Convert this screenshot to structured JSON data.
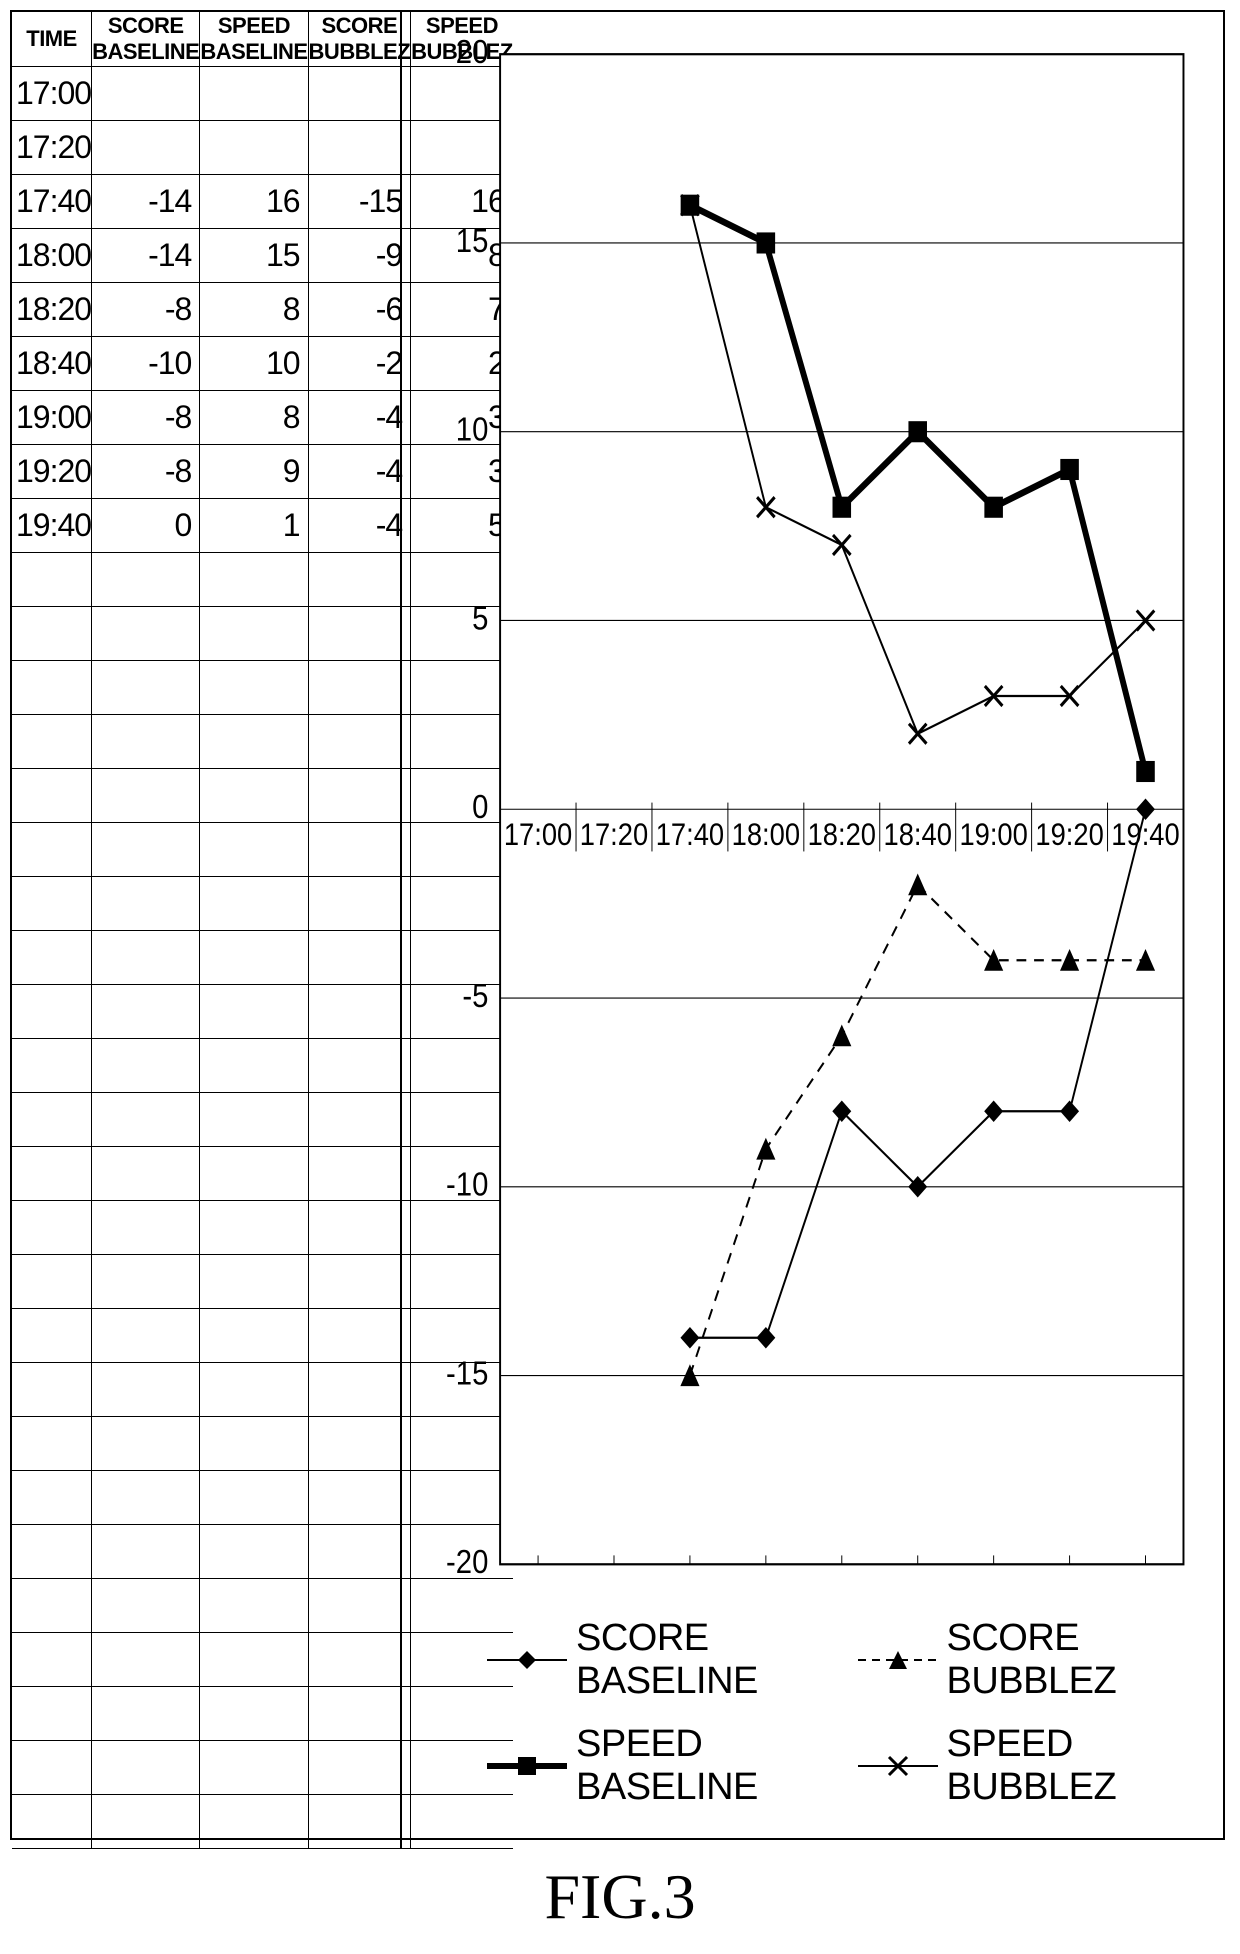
{
  "figure_label": "FIG.3",
  "table": {
    "columns": [
      "TIME",
      "SCORE BASELINE",
      "SPEED BASELINE",
      "SCORE BUBBLEZ",
      "SPEED BUBBLEZ"
    ],
    "col_widths_pct": [
      14,
      21.5,
      21.5,
      21.5,
      21.5
    ],
    "times": [
      "17:00",
      "17:20",
      "17:40",
      "18:00",
      "18:20",
      "18:40",
      "19:00",
      "19:20",
      "19:40"
    ],
    "rows": [
      {
        "time": "17:00",
        "sb": null,
        "spb": null,
        "scb": null,
        "spbb": null
      },
      {
        "time": "17:20",
        "sb": null,
        "spb": null,
        "scb": null,
        "spbb": null
      },
      {
        "time": "17:40",
        "sb": -14,
        "spb": 16,
        "scb": -15,
        "spbb": 16
      },
      {
        "time": "18:00",
        "sb": -14,
        "spb": 15,
        "scb": -9,
        "spbb": 8
      },
      {
        "time": "18:20",
        "sb": -8,
        "spb": 8,
        "scb": -6,
        "spbb": 7
      },
      {
        "time": "18:40",
        "sb": -10,
        "spb": 10,
        "scb": -2,
        "spbb": 2
      },
      {
        "time": "19:00",
        "sb": -8,
        "spb": 8,
        "scb": -4,
        "spbb": 3
      },
      {
        "time": "19:20",
        "sb": -8,
        "spb": 9,
        "scb": -4,
        "spbb": 3
      },
      {
        "time": "19:40",
        "sb": 0,
        "spb": 1,
        "scb": -4,
        "spbb": 5
      }
    ],
    "blank_row_count": 24,
    "header_fontsize": 22,
    "cell_fontsize": 32
  },
  "chart": {
    "type": "line",
    "ylim": [
      -20,
      20
    ],
    "ytick_step": 5,
    "yticks": [
      20,
      15,
      10,
      5,
      0,
      -5,
      -10,
      -15,
      -20
    ],
    "x_categories": [
      "17:00",
      "17:20",
      "17:40",
      "18:00",
      "18:20",
      "18:40",
      "19:00",
      "19:20",
      "19:40"
    ],
    "series": [
      {
        "name": "SCORE BASELINE",
        "marker": "diamond",
        "line_style": "solid-thin",
        "line_width": 2,
        "dash": null,
        "data": [
          null,
          null,
          -14,
          -14,
          -8,
          -10,
          -8,
          -8,
          0
        ]
      },
      {
        "name": "SPEED BASELINE",
        "marker": "square",
        "line_style": "solid-thick",
        "line_width": 6,
        "dash": null,
        "data": [
          null,
          null,
          16,
          15,
          8,
          10,
          8,
          9,
          1
        ]
      },
      {
        "name": "SCORE BUBBLEZ",
        "marker": "triangle",
        "line_style": "dashed",
        "line_width": 2,
        "dash": "10,8",
        "data": [
          null,
          null,
          -15,
          -9,
          -6,
          -2,
          -4,
          -4,
          -4
        ]
      },
      {
        "name": "SPEED BUBBLEZ",
        "marker": "x",
        "line_style": "solid-thin",
        "line_width": 2,
        "dash": null,
        "data": [
          null,
          null,
          16,
          8,
          7,
          2,
          3,
          3,
          5
        ]
      }
    ],
    "colors": {
      "axis": "#000000",
      "grid": "#000000",
      "background": "#ffffff",
      "series": "#000000",
      "text": "#000000"
    },
    "tick_fontsize": 30,
    "xlabel_fontsize": 28,
    "marker_size": 9,
    "plot_border_width": 2
  },
  "legend": {
    "items": [
      {
        "label": "SCORE BASELINE",
        "marker": "diamond",
        "dash": null,
        "line_width": 2
      },
      {
        "label": "SCORE BUBBLEZ",
        "marker": "triangle",
        "dash": "8,6",
        "line_width": 2
      },
      {
        "label": "SPEED BASELINE",
        "marker": "square",
        "dash": null,
        "line_width": 6
      },
      {
        "label": "SPEED BUBBLEZ",
        "marker": "x",
        "dash": null,
        "line_width": 2
      }
    ],
    "fontsize": 38
  }
}
